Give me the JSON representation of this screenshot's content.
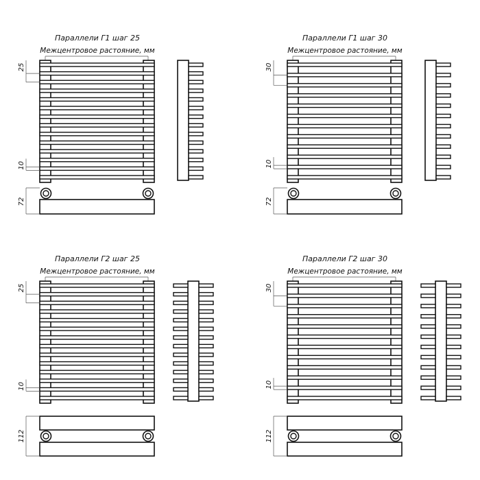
{
  "line_color": "#111111",
  "dim_color": "#555555",
  "drawings": [
    {
      "title": "Параллели Г1 шаг 25",
      "subtitle": "Межцентровое растояние, мм",
      "type": "G1",
      "bars": 14,
      "pitch_label": "25",
      "bar_label": "10",
      "depth_label": "72"
    },
    {
      "title": "Параллели Г1 шаг 30",
      "subtitle": "Межцентровое растояние, мм",
      "type": "G1",
      "bars": 12,
      "pitch_label": "30",
      "bar_label": "10",
      "depth_label": "72"
    },
    {
      "title": "Параллели Г2 шаг 25",
      "subtitle": "Межцентровое растояние, мм",
      "type": "G2",
      "bars": 14,
      "pitch_label": "25",
      "bar_label": "10",
      "depth_label": "112"
    },
    {
      "title": "Параллели Г2 шаг 30",
      "subtitle": "Межцентровое растояние, мм",
      "type": "G2",
      "bars": 12,
      "pitch_label": "30",
      "bar_label": "10",
      "depth_label": "112"
    }
  ]
}
